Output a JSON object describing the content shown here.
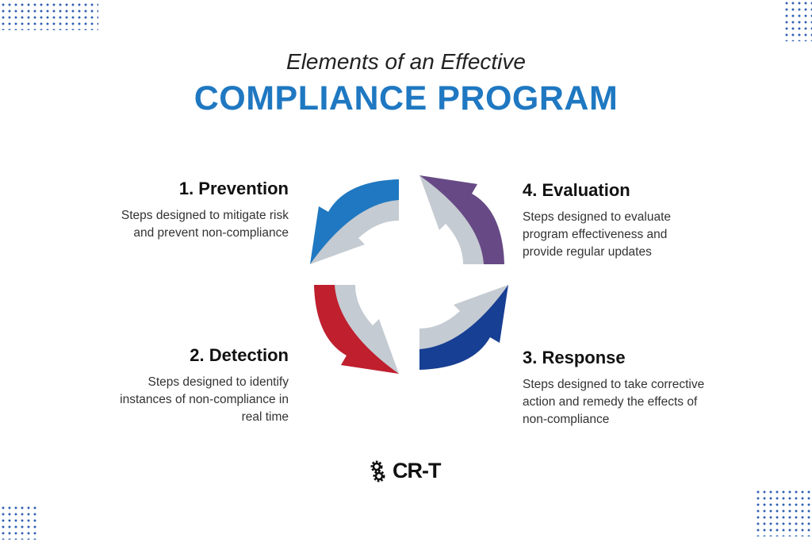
{
  "header": {
    "subtitle": "Elements of an Effective",
    "title": "COMPLIANCE PROGRAM"
  },
  "steps": [
    {
      "title": "1. Prevention",
      "description": "Steps designed to mitigate risk and prevent non-compliance",
      "color": "#1f78c1"
    },
    {
      "title": "2. Detection",
      "description": "Steps designed to identify instances of non-compliance in real time",
      "color": "#c01f2e"
    },
    {
      "title": "3. Response",
      "description": "Steps designed to take corrective action and remedy the effects of non-compliance",
      "color": "#173f93"
    },
    {
      "title": "4. Evaluation",
      "description": "Steps designed to evaluate program effectiveness and provide regular updates",
      "color": "#674a85"
    }
  ],
  "colors": {
    "inner_arrow": "#c5cbd2",
    "title": "#1f78c1",
    "dots": "#2f5fb0"
  },
  "logo": {
    "text": "CR-T",
    "icon": "gears-icon"
  }
}
